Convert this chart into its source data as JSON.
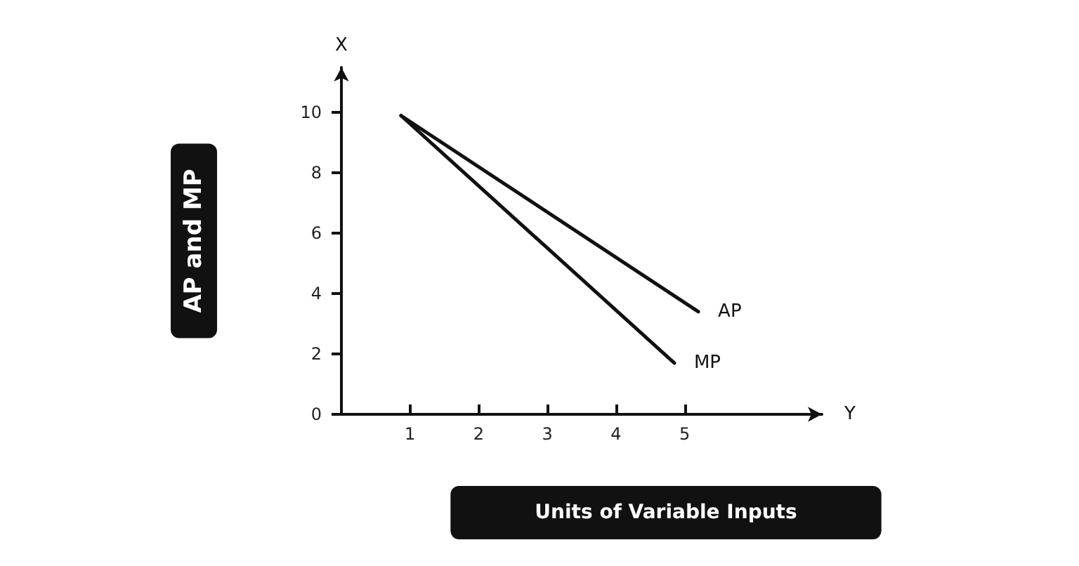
{
  "chart_data": {
    "type": "line",
    "xlabel": "Units of Variable Inputs",
    "ylabel": "AP and MP",
    "series": [
      {
        "name": "AP",
        "color": "#111111",
        "x": [
          0.87,
          5.2
        ],
        "values": [
          9.9,
          3.4
        ]
      },
      {
        "name": "MP",
        "color": "#111111",
        "x": [
          0.87,
          4.85
        ],
        "values": [
          9.9,
          1.7
        ]
      }
    ],
    "xlim": [
      0,
      7
    ],
    "ylim": [
      0,
      11.5
    ],
    "xticks": [
      1,
      2,
      3,
      4,
      5
    ],
    "yticks": [
      0,
      2,
      4,
      6,
      8,
      10
    ],
    "annotations": [
      "X",
      "Y"
    ],
    "grid": false,
    "legend": false,
    "marker": "none",
    "line_style": "solid"
  }
}
